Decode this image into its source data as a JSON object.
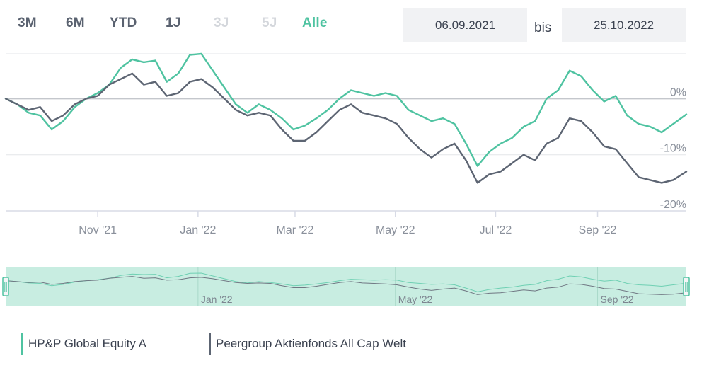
{
  "range_buttons": [
    {
      "label": "3M",
      "state": "enabled"
    },
    {
      "label": "6M",
      "state": "enabled"
    },
    {
      "label": "YTD",
      "state": "enabled"
    },
    {
      "label": "1J",
      "state": "enabled"
    },
    {
      "label": "3J",
      "state": "disabled"
    },
    {
      "label": "5J",
      "state": "disabled"
    },
    {
      "label": "Alle",
      "state": "active"
    }
  ],
  "date_range": {
    "from": "06.09.2021",
    "separator": "bis",
    "to": "25.10.2022"
  },
  "colors": {
    "fund": "#4fc3a1",
    "peer": "#5d6573",
    "navigator_bg": "#c8ede1",
    "grid": "#e3e5e8",
    "zero_line": "#c4c7cc",
    "axis_text": "#8a909b",
    "accent": "#4fc3a1"
  },
  "chart_data": {
    "type": "line",
    "x_range": [
      "2021-09-06",
      "2022-10-25"
    ],
    "y_range": [
      -20,
      8
    ],
    "ylabel_ticks": [
      "0%",
      "-10%",
      "-20%"
    ],
    "x_tick_labels": [
      "Nov '21",
      "Jan '22",
      "Mar '22",
      "May '22",
      "Jul '22",
      "Sep '22"
    ],
    "x_tick_dates": [
      "2021-11-01",
      "2022-01-01",
      "2022-03-01",
      "2022-05-01",
      "2022-07-01",
      "2022-09-01"
    ],
    "series": [
      {
        "name": "HP&P Global Equity A",
        "points": [
          [
            "2021-09-06",
            0.0
          ],
          [
            "2021-09-13",
            -1.0
          ],
          [
            "2021-09-20",
            -2.5
          ],
          [
            "2021-09-27",
            -3.0
          ],
          [
            "2021-10-04",
            -5.5
          ],
          [
            "2021-10-11",
            -4.0
          ],
          [
            "2021-10-18",
            -1.5
          ],
          [
            "2021-10-25",
            0.0
          ],
          [
            "2021-11-01",
            1.0
          ],
          [
            "2021-11-08",
            2.5
          ],
          [
            "2021-11-15",
            5.5
          ],
          [
            "2021-11-22",
            7.0
          ],
          [
            "2021-11-29",
            6.5
          ],
          [
            "2021-12-06",
            6.8
          ],
          [
            "2021-12-13",
            3.0
          ],
          [
            "2021-12-20",
            4.5
          ],
          [
            "2021-12-27",
            7.8
          ],
          [
            "2022-01-03",
            8.0
          ],
          [
            "2022-01-10",
            5.0
          ],
          [
            "2022-01-17",
            2.0
          ],
          [
            "2022-01-24",
            -1.0
          ],
          [
            "2022-01-31",
            -2.5
          ],
          [
            "2022-02-07",
            -1.0
          ],
          [
            "2022-02-14",
            -2.0
          ],
          [
            "2022-02-21",
            -3.5
          ],
          [
            "2022-02-28",
            -5.5
          ],
          [
            "2022-03-07",
            -4.8
          ],
          [
            "2022-03-14",
            -3.5
          ],
          [
            "2022-03-21",
            -2.0
          ],
          [
            "2022-03-28",
            0.0
          ],
          [
            "2022-04-04",
            1.5
          ],
          [
            "2022-04-11",
            1.0
          ],
          [
            "2022-04-18",
            0.5
          ],
          [
            "2022-04-25",
            1.0
          ],
          [
            "2022-05-02",
            0.5
          ],
          [
            "2022-05-09",
            -2.0
          ],
          [
            "2022-05-16",
            -3.0
          ],
          [
            "2022-05-23",
            -4.0
          ],
          [
            "2022-05-30",
            -3.5
          ],
          [
            "2022-06-06",
            -4.5
          ],
          [
            "2022-06-13",
            -8.0
          ],
          [
            "2022-06-20",
            -12.0
          ],
          [
            "2022-06-27",
            -9.5
          ],
          [
            "2022-07-04",
            -8.0
          ],
          [
            "2022-07-11",
            -7.0
          ],
          [
            "2022-07-18",
            -5.0
          ],
          [
            "2022-07-25",
            -4.0
          ],
          [
            "2022-08-01",
            0.0
          ],
          [
            "2022-08-08",
            1.5
          ],
          [
            "2022-08-15",
            5.0
          ],
          [
            "2022-08-22",
            4.0
          ],
          [
            "2022-08-29",
            1.5
          ],
          [
            "2022-09-05",
            -0.5
          ],
          [
            "2022-09-12",
            0.5
          ],
          [
            "2022-09-19",
            -3.0
          ],
          [
            "2022-09-26",
            -4.5
          ],
          [
            "2022-10-03",
            -5.0
          ],
          [
            "2022-10-10",
            -6.0
          ],
          [
            "2022-10-17",
            -4.5
          ],
          [
            "2022-10-25",
            -2.8
          ]
        ]
      },
      {
        "name": "Peergroup Aktienfonds All Cap Welt",
        "points": [
          [
            "2021-09-06",
            0.0
          ],
          [
            "2021-09-13",
            -1.0
          ],
          [
            "2021-09-20",
            -2.0
          ],
          [
            "2021-09-27",
            -1.5
          ],
          [
            "2021-10-04",
            -4.0
          ],
          [
            "2021-10-11",
            -3.0
          ],
          [
            "2021-10-18",
            -1.0
          ],
          [
            "2021-10-25",
            0.0
          ],
          [
            "2021-11-01",
            0.5
          ],
          [
            "2021-11-08",
            2.5
          ],
          [
            "2021-11-15",
            3.5
          ],
          [
            "2021-11-22",
            4.5
          ],
          [
            "2021-11-29",
            2.5
          ],
          [
            "2021-12-06",
            3.0
          ],
          [
            "2021-12-13",
            0.5
          ],
          [
            "2021-12-20",
            1.0
          ],
          [
            "2021-12-27",
            3.0
          ],
          [
            "2022-01-03",
            3.5
          ],
          [
            "2022-01-10",
            2.0
          ],
          [
            "2022-01-17",
            0.0
          ],
          [
            "2022-01-24",
            -2.0
          ],
          [
            "2022-01-31",
            -3.0
          ],
          [
            "2022-02-07",
            -2.5
          ],
          [
            "2022-02-14",
            -3.0
          ],
          [
            "2022-02-21",
            -5.5
          ],
          [
            "2022-02-28",
            -7.5
          ],
          [
            "2022-03-07",
            -7.5
          ],
          [
            "2022-03-14",
            -6.0
          ],
          [
            "2022-03-21",
            -4.0
          ],
          [
            "2022-03-28",
            -2.0
          ],
          [
            "2022-04-04",
            -1.0
          ],
          [
            "2022-04-11",
            -2.5
          ],
          [
            "2022-04-18",
            -3.0
          ],
          [
            "2022-04-25",
            -3.5
          ],
          [
            "2022-05-02",
            -4.5
          ],
          [
            "2022-05-09",
            -7.0
          ],
          [
            "2022-05-16",
            -9.0
          ],
          [
            "2022-05-23",
            -10.5
          ],
          [
            "2022-05-30",
            -9.0
          ],
          [
            "2022-06-06",
            -8.0
          ],
          [
            "2022-06-13",
            -11.0
          ],
          [
            "2022-06-20",
            -15.0
          ],
          [
            "2022-06-27",
            -13.5
          ],
          [
            "2022-07-04",
            -13.0
          ],
          [
            "2022-07-11",
            -11.5
          ],
          [
            "2022-07-18",
            -10.0
          ],
          [
            "2022-07-25",
            -11.0
          ],
          [
            "2022-08-01",
            -8.0
          ],
          [
            "2022-08-08",
            -7.0
          ],
          [
            "2022-08-15",
            -3.5
          ],
          [
            "2022-08-22",
            -4.0
          ],
          [
            "2022-08-29",
            -6.0
          ],
          [
            "2022-09-05",
            -8.5
          ],
          [
            "2022-09-12",
            -9.0
          ],
          [
            "2022-09-19",
            -11.5
          ],
          [
            "2022-09-26",
            -14.0
          ],
          [
            "2022-10-03",
            -14.5
          ],
          [
            "2022-10-10",
            -15.0
          ],
          [
            "2022-10-17",
            -14.5
          ],
          [
            "2022-10-25",
            -13.0
          ]
        ]
      }
    ],
    "grid": true
  },
  "navigator": {
    "tick_labels": [
      "Jan '22",
      "May '22",
      "Sep '22"
    ],
    "tick_dates": [
      "2022-01-01",
      "2022-05-01",
      "2022-09-01"
    ]
  },
  "legend": [
    {
      "label": "HP&P Global Equity A",
      "color": "#4fc3a1"
    },
    {
      "label": "Peergroup Aktienfonds All Cap Welt",
      "color": "#5d6573"
    }
  ]
}
